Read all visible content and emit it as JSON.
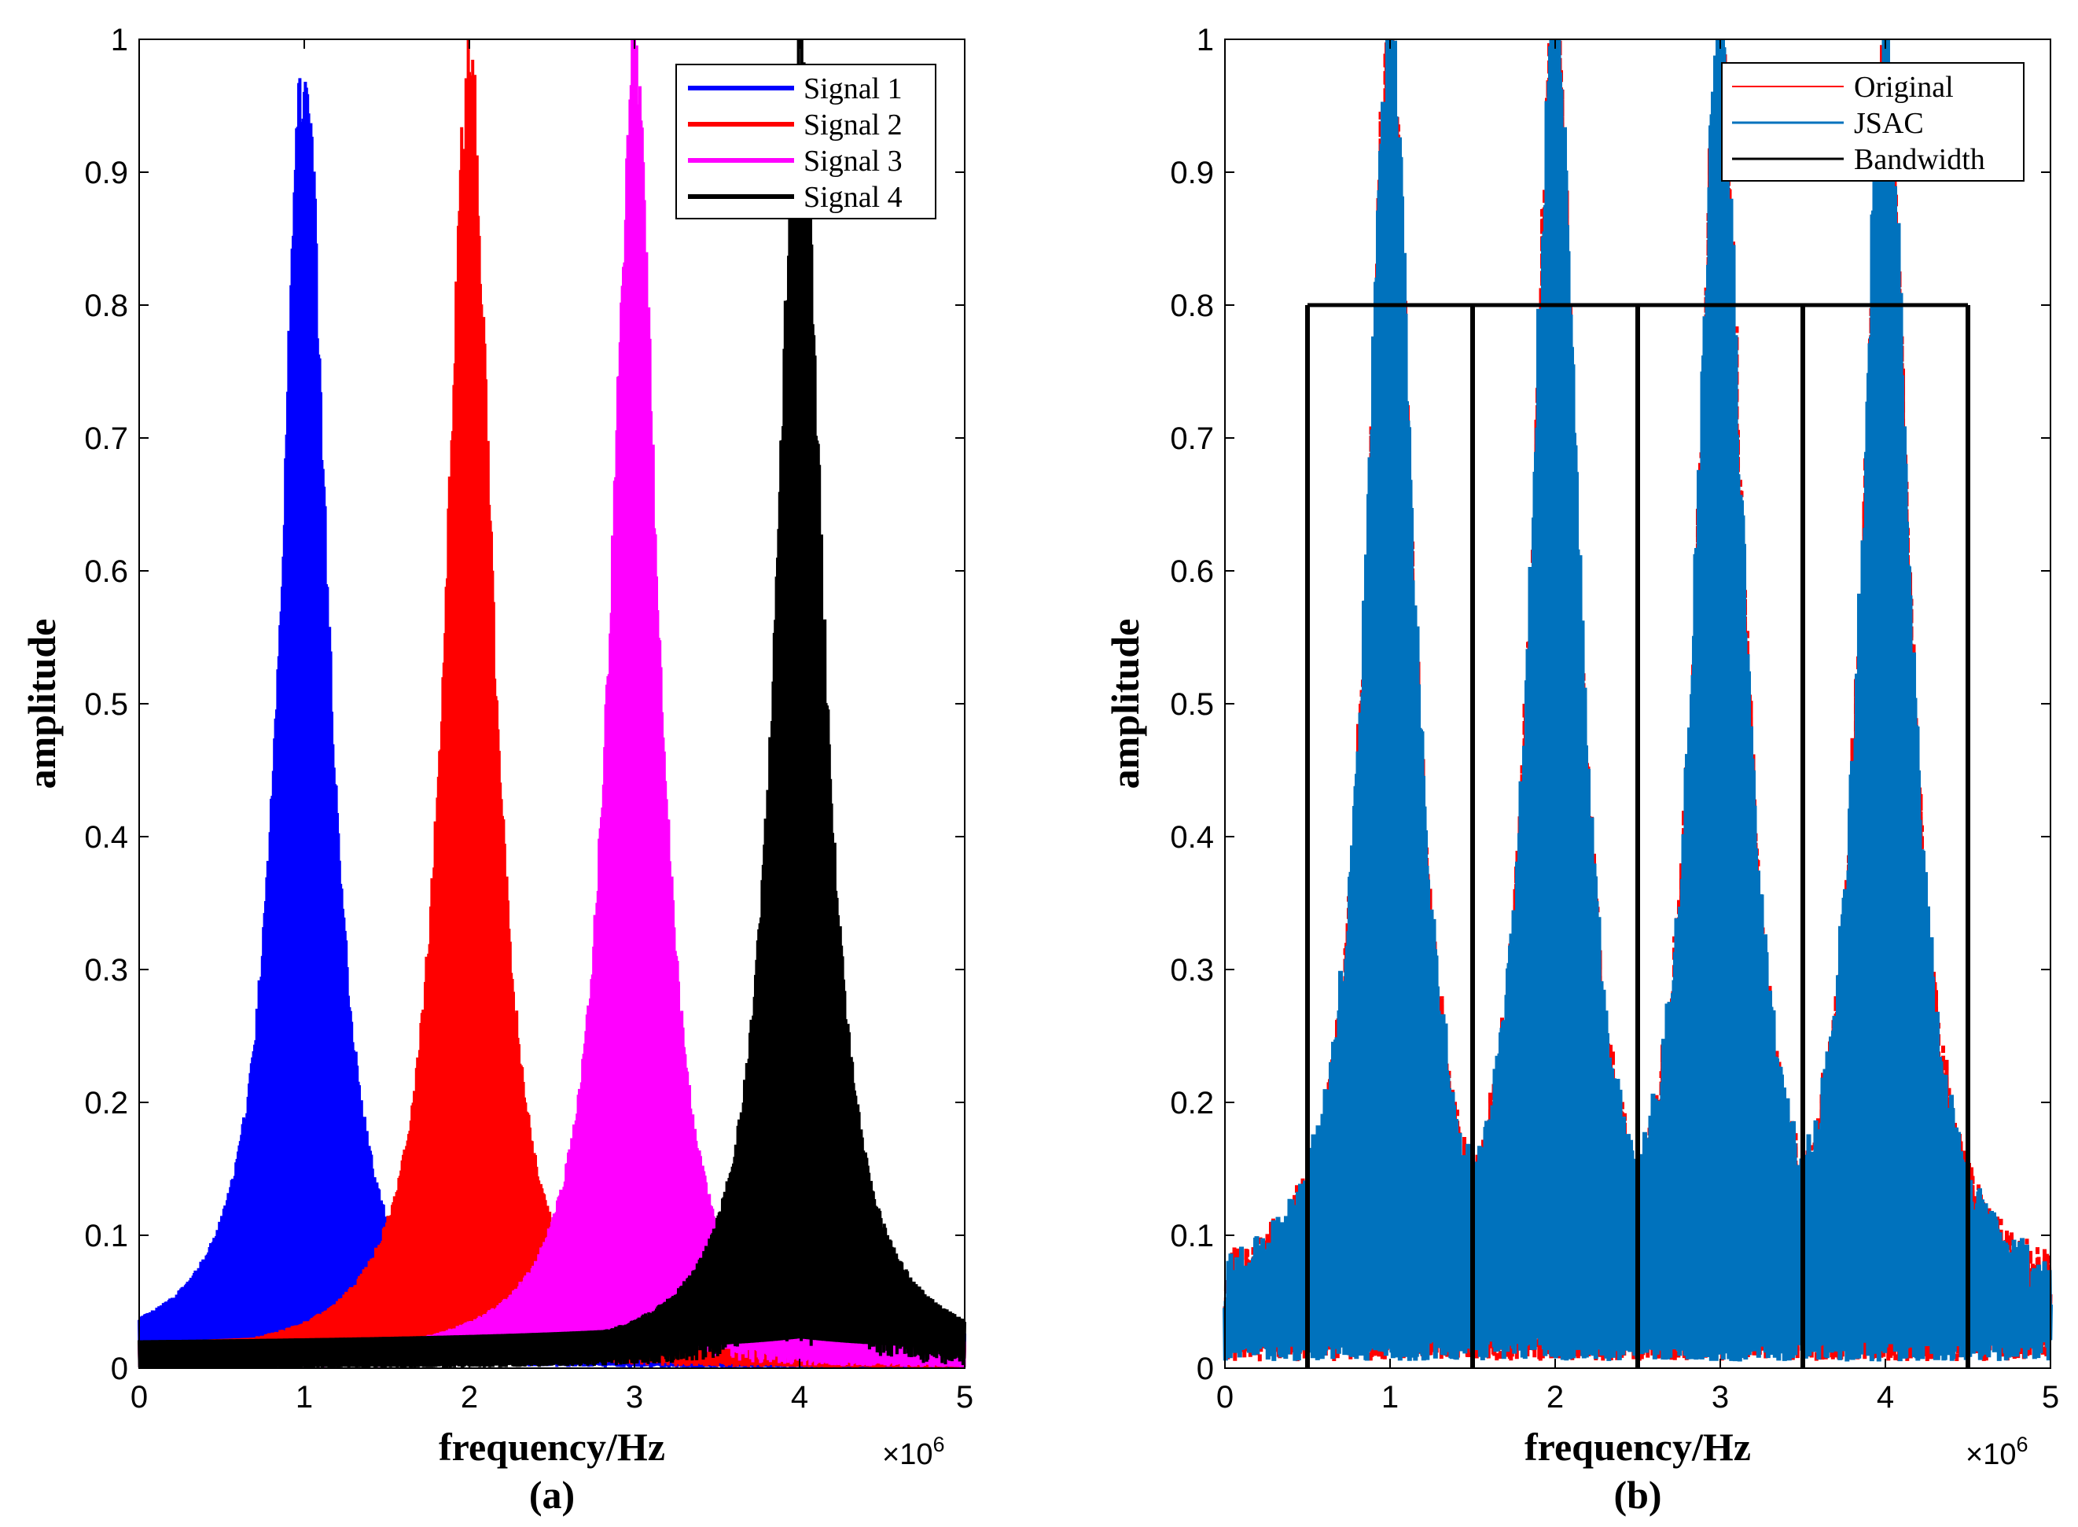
{
  "chart_data": [
    {
      "type": "line",
      "panel": "a",
      "caption": "(a)",
      "xlabel": "frequency/Hz",
      "ylabel": "amplitude",
      "x_multiplier": "×10",
      "x_multiplier_exp": "6",
      "xlim": [
        0,
        5
      ],
      "ylim": [
        0,
        1
      ],
      "xticks": [
        0,
        1,
        2,
        3,
        4,
        5
      ],
      "yticks": [
        0,
        0.1,
        0.2,
        0.3,
        0.4,
        0.5,
        0.6,
        0.7,
        0.8,
        0.9,
        1
      ],
      "ytick_labels": [
        "0",
        "0.1",
        "0.2",
        "0.3",
        "0.4",
        "0.5",
        "0.6",
        "0.7",
        "0.8",
        "0.9",
        "1"
      ],
      "grid": false,
      "legend_position": "top-right",
      "series": [
        {
          "name": "Signal 1",
          "color": "#0000ff",
          "center": 1.0,
          "peak": 1.0,
          "floor": 0.02
        },
        {
          "name": "Signal 2",
          "color": "#ff0000",
          "center": 2.0,
          "peak": 1.0,
          "floor": 0.01
        },
        {
          "name": "Signal 3",
          "color": "#ff00ff",
          "center": 3.0,
          "peak": 1.0,
          "floor": 0.01
        },
        {
          "name": "Signal 4",
          "color": "#000000",
          "center": 4.0,
          "peak": 1.0,
          "floor": 0.015
        }
      ]
    },
    {
      "type": "line",
      "panel": "b",
      "caption": "(b)",
      "xlabel": "frequency/Hz",
      "ylabel": "amplitude",
      "x_multiplier": "×10",
      "x_multiplier_exp": "6",
      "xlim": [
        0,
        5
      ],
      "ylim": [
        0,
        1
      ],
      "xticks": [
        0,
        1,
        2,
        3,
        4,
        5
      ],
      "yticks": [
        0,
        0.1,
        0.2,
        0.3,
        0.4,
        0.5,
        0.6,
        0.7,
        0.8,
        0.9,
        1
      ],
      "ytick_labels": [
        "0",
        "0.1",
        "0.2",
        "0.3",
        "0.4",
        "0.5",
        "0.6",
        "0.7",
        "0.8",
        "0.9",
        "1"
      ],
      "grid": false,
      "legend_position": "top-right",
      "series": [
        {
          "name": "Original",
          "color": "#ff0000",
          "centers": [
            1,
            2,
            3,
            4
          ]
        },
        {
          "name": "JSAC",
          "color": "#0072bd",
          "centers": [
            1,
            2,
            3,
            4
          ]
        },
        {
          "name": "Bandwidth",
          "color": "#000000",
          "edges": [
            0.5,
            1.5,
            2.5,
            3.5,
            4.5
          ],
          "level": 0.8
        }
      ]
    }
  ]
}
